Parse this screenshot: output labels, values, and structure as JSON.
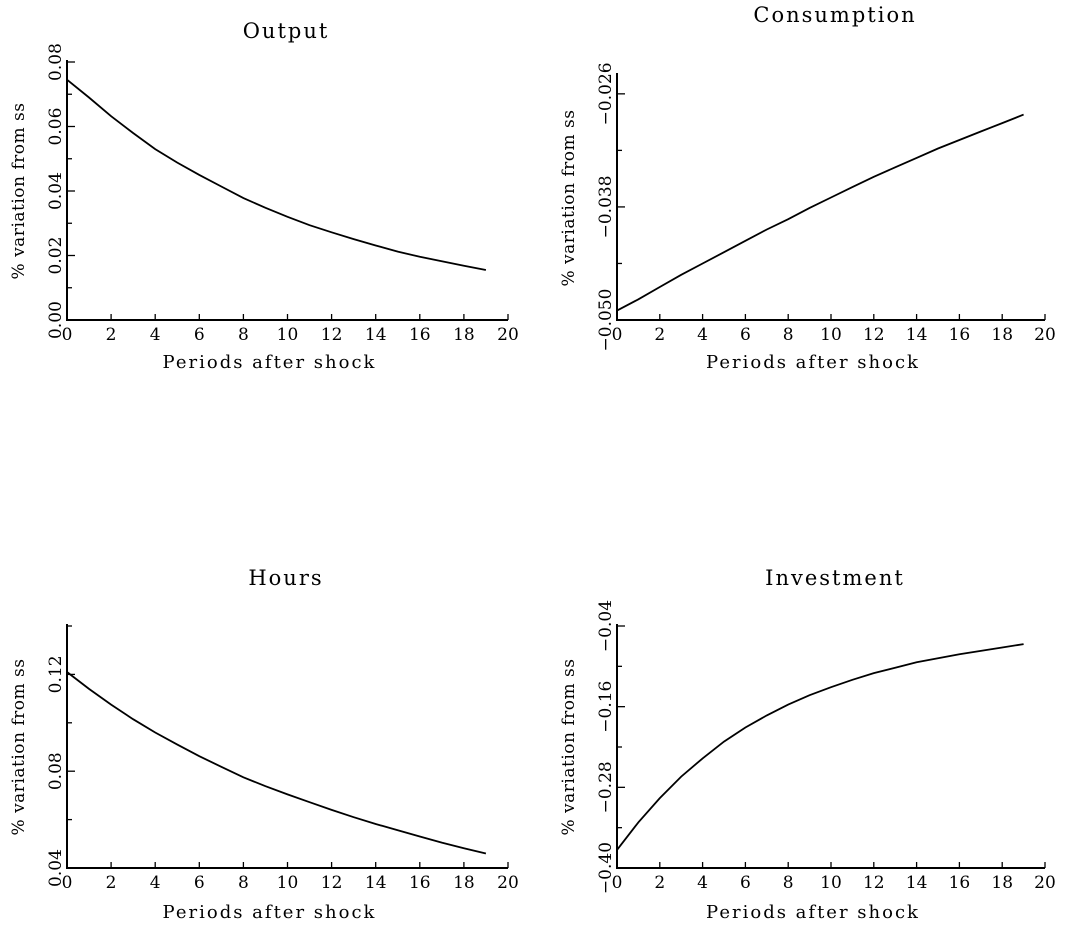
{
  "chart_data": [
    {
      "type": "line",
      "title": "Output",
      "xlabel": "Periods after shock",
      "ylabel": "% variation from ss",
      "xlim": [
        0,
        20
      ],
      "ylim": [
        0.0,
        0.08
      ],
      "xticks": [
        0,
        2,
        4,
        6,
        8,
        10,
        12,
        14,
        16,
        18,
        20
      ],
      "xtick_labels": [
        "0",
        "2",
        "4",
        "6",
        "8",
        "10",
        "12",
        "14",
        "16",
        "18",
        "20"
      ],
      "yticks": [
        0.0,
        0.02,
        0.04,
        0.06,
        0.08
      ],
      "ytick_labels": [
        "0.00",
        "0.02",
        "0.04",
        "0.06",
        "0.08"
      ],
      "yminor": [
        0.01,
        0.03,
        0.05,
        0.07
      ],
      "grid": false,
      "series": [
        {
          "x": [
            0,
            1,
            2,
            3,
            4,
            5,
            6,
            7,
            8,
            9,
            10,
            11,
            12,
            13,
            14,
            15,
            16,
            17,
            18,
            19
          ],
          "y": [
            0.0745,
            0.069,
            0.0632,
            0.058,
            0.053,
            0.0488,
            0.045,
            0.0414,
            0.0378,
            0.0348,
            0.032,
            0.0294,
            0.0272,
            0.0251,
            0.0231,
            0.0212,
            0.0196,
            0.0182,
            0.0168,
            0.0155
          ]
        }
      ]
    },
    {
      "type": "line",
      "title": "Consumption",
      "xlabel": "Periods after shock",
      "ylabel": "% variation from ss",
      "xlim": [
        0,
        20
      ],
      "ylim": [
        -0.05,
        -0.024
      ],
      "xticks": [
        0,
        2,
        4,
        6,
        8,
        10,
        12,
        14,
        16,
        18,
        20
      ],
      "xtick_labels": [
        "0",
        "2",
        "4",
        "6",
        "8",
        "10",
        "12",
        "14",
        "16",
        "18",
        "20"
      ],
      "yticks": [
        -0.05,
        -0.038,
        -0.026
      ],
      "ytick_labels": [
        "−0.050",
        "−0.038",
        "−0.026"
      ],
      "yminor": [
        -0.044,
        -0.032
      ],
      "grid": false,
      "series": [
        {
          "x": [
            0,
            1,
            2,
            3,
            4,
            5,
            6,
            7,
            8,
            9,
            10,
            11,
            12,
            13,
            14,
            15,
            16,
            17,
            18,
            19
          ],
          "y": [
            -0.049,
            -0.0478,
            -0.0465,
            -0.0452,
            -0.044,
            -0.0428,
            -0.0416,
            -0.0404,
            -0.0393,
            -0.0381,
            -0.037,
            -0.0359,
            -0.0348,
            -0.0338,
            -0.0328,
            -0.0318,
            -0.0309,
            -0.03,
            -0.0291,
            -0.0282
          ]
        }
      ]
    },
    {
      "type": "line",
      "title": "Hours",
      "xlabel": "Periods after shock",
      "ylabel": "% variation from ss",
      "xlim": [
        0,
        20
      ],
      "ylim": [
        0.04,
        0.14
      ],
      "xticks": [
        0,
        2,
        4,
        6,
        8,
        10,
        12,
        14,
        16,
        18,
        20
      ],
      "xtick_labels": [
        "0",
        "2",
        "4",
        "6",
        "8",
        "10",
        "12",
        "14",
        "16",
        "18",
        "20"
      ],
      "yticks": [
        0.04,
        0.08,
        0.12
      ],
      "ytick_labels": [
        "0.04",
        "0.08",
        "0.12"
      ],
      "yminor": [
        0.06,
        0.1,
        0.14
      ],
      "grid": false,
      "series": [
        {
          "x": [
            0,
            1,
            2,
            3,
            4,
            5,
            6,
            7,
            8,
            9,
            10,
            11,
            12,
            13,
            14,
            15,
            16,
            17,
            18,
            19
          ],
          "y": [
            0.121,
            0.114,
            0.1075,
            0.1015,
            0.096,
            0.091,
            0.0862,
            0.0818,
            0.0775,
            0.0738,
            0.0704,
            0.0672,
            0.064,
            0.061,
            0.0582,
            0.0556,
            0.053,
            0.0505,
            0.0482,
            0.046
          ]
        }
      ]
    },
    {
      "type": "line",
      "title": "Investment",
      "xlabel": "Periods after shock",
      "ylabel": "% variation from ss",
      "xlim": [
        0,
        20
      ],
      "ylim": [
        -0.4,
        -0.04
      ],
      "xticks": [
        0,
        2,
        4,
        6,
        8,
        10,
        12,
        14,
        16,
        18,
        20
      ],
      "xtick_labels": [
        "0",
        "2",
        "4",
        "6",
        "8",
        "10",
        "12",
        "14",
        "16",
        "18",
        "20"
      ],
      "yticks": [
        -0.4,
        -0.28,
        -0.16,
        -0.04
      ],
      "ytick_labels": [
        "−0.40",
        "−0.28",
        "−0.16",
        "−0.04"
      ],
      "yminor": [
        -0.34,
        -0.22,
        -0.1
      ],
      "grid": false,
      "series": [
        {
          "x": [
            0,
            1,
            2,
            3,
            4,
            5,
            6,
            7,
            8,
            9,
            10,
            11,
            12,
            13,
            14,
            15,
            16,
            17,
            18,
            19
          ],
          "y": [
            -0.373,
            -0.332,
            -0.296,
            -0.264,
            -0.237,
            -0.212,
            -0.191,
            -0.173,
            -0.157,
            -0.143,
            -0.131,
            -0.12,
            -0.11,
            -0.102,
            -0.094,
            -0.088,
            -0.082,
            -0.077,
            -0.072,
            -0.067
          ]
        }
      ]
    }
  ]
}
